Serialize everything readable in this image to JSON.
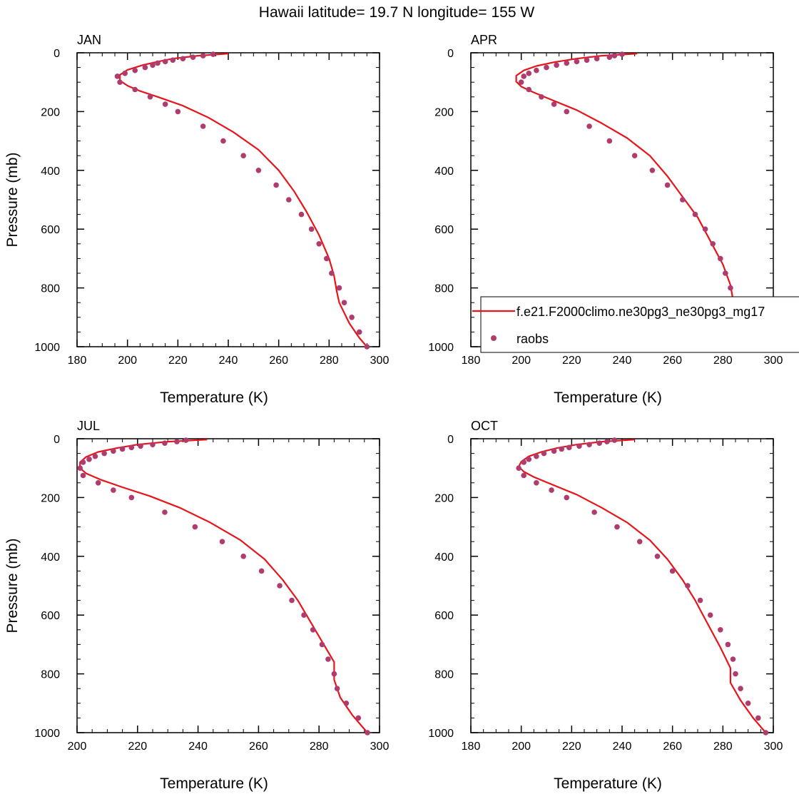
{
  "figure": {
    "title": "Hawaii  latitude= 19.7 N longitude= 155 W"
  },
  "chart_data": [
    {
      "type": "line",
      "title": "JAN",
      "xlabel": "Temperature (K)",
      "ylabel": "Pressure (mb)",
      "xlim": [
        180,
        300
      ],
      "ylim": [
        0,
        1000
      ],
      "y_inverted": true,
      "xticks": [
        180,
        200,
        220,
        240,
        260,
        280,
        300
      ],
      "yticks": [
        0,
        200,
        400,
        600,
        800,
        1000
      ],
      "series": [
        {
          "name": "f.e21.F2000climo.ne30pg3_ne30pg3_mg17",
          "kind": "line",
          "color": "#e8141a",
          "points": [
            [
              240,
              3
            ],
            [
              228,
              10
            ],
            [
              218,
              20
            ],
            [
              212,
              30
            ],
            [
              206,
              42
            ],
            [
              200,
              58
            ],
            [
              197,
              75
            ],
            [
              197,
              95
            ],
            [
              200,
              112
            ],
            [
              205,
              130
            ],
            [
              212,
              150
            ],
            [
              222,
              180
            ],
            [
              232,
              220
            ],
            [
              242,
              270
            ],
            [
              252,
              330
            ],
            [
              260,
              400
            ],
            [
              266,
              470
            ],
            [
              271,
              540
            ],
            [
              276,
              620
            ],
            [
              280,
              700
            ],
            [
              282,
              760
            ],
            [
              283,
              810
            ],
            [
              284,
              850
            ],
            [
              288,
              920
            ],
            [
              292,
              970
            ],
            [
              295,
              1000
            ]
          ]
        },
        {
          "name": "raobs",
          "kind": "scatter",
          "color": "#b03c6e",
          "points": [
            [
              234,
              5
            ],
            [
              230,
              10
            ],
            [
              226,
              15
            ],
            [
              222,
              20
            ],
            [
              218,
              25
            ],
            [
              215,
              30
            ],
            [
              212,
              35
            ],
            [
              210,
              42
            ],
            [
              207,
              50
            ],
            [
              203,
              60
            ],
            [
              199,
              70
            ],
            [
              196,
              80
            ],
            [
              197,
              100
            ],
            [
              203,
              125
            ],
            [
              209,
              150
            ],
            [
              215,
              175
            ],
            [
              220,
              200
            ],
            [
              230,
              250
            ],
            [
              238,
              300
            ],
            [
              246,
              350
            ],
            [
              252,
              400
            ],
            [
              259,
              450
            ],
            [
              264,
              500
            ],
            [
              269,
              550
            ],
            [
              273,
              600
            ],
            [
              276,
              650
            ],
            [
              279,
              700
            ],
            [
              281,
              750
            ],
            [
              284,
              800
            ],
            [
              286,
              850
            ],
            [
              289,
              900
            ],
            [
              292,
              950
            ],
            [
              295,
              1000
            ]
          ]
        }
      ]
    },
    {
      "type": "line",
      "title": "APR",
      "xlabel": "Temperature (K)",
      "ylabel": "",
      "xlim": [
        180,
        300
      ],
      "ylim": [
        0,
        1000
      ],
      "y_inverted": true,
      "xticks": [
        180,
        200,
        220,
        240,
        260,
        280,
        300
      ],
      "yticks": [
        0,
        200,
        400,
        600,
        800,
        1000
      ],
      "legend": {
        "placement": "lower-right",
        "entries": [
          {
            "label": "f.e21.F2000climo.ne30pg3_ne30pg3_mg17",
            "marker": "line",
            "color": "#e8141a"
          },
          {
            "label": "raobs",
            "marker": "dot",
            "color": "#b03c6e"
          }
        ]
      },
      "series": [
        {
          "name": "f.e21.F2000climo.ne30pg3_ne30pg3_mg17",
          "kind": "line",
          "color": "#e8141a",
          "points": [
            [
              246,
              3
            ],
            [
              232,
              10
            ],
            [
              222,
              20
            ],
            [
              213,
              32
            ],
            [
              206,
              45
            ],
            [
              201,
              60
            ],
            [
              198,
              78
            ],
            [
              198,
              98
            ],
            [
              200,
              115
            ],
            [
              205,
              135
            ],
            [
              212,
              160
            ],
            [
              222,
              195
            ],
            [
              232,
              240
            ],
            [
              242,
              290
            ],
            [
              251,
              350
            ],
            [
              258,
              420
            ],
            [
              264,
              490
            ],
            [
              270,
              560
            ],
            [
              275,
              640
            ],
            [
              280,
              720
            ],
            [
              283,
              790
            ],
            [
              284,
              840
            ],
            [
              288,
              900
            ],
            [
              292,
              960
            ],
            [
              295,
              1000
            ]
          ]
        },
        {
          "name": "raobs",
          "kind": "scatter",
          "color": "#b03c6e",
          "points": [
            [
              240,
              5
            ],
            [
              237,
              10
            ],
            [
              235,
              15
            ],
            [
              230,
              20
            ],
            [
              226,
              25
            ],
            [
              222,
              30
            ],
            [
              218,
              35
            ],
            [
              214,
              42
            ],
            [
              210,
              50
            ],
            [
              206,
              60
            ],
            [
              203,
              70
            ],
            [
              201,
              80
            ],
            [
              200,
              100
            ],
            [
              203,
              125
            ],
            [
              208,
              150
            ],
            [
              213,
              175
            ],
            [
              218,
              200
            ],
            [
              227,
              250
            ],
            [
              235,
              300
            ],
            [
              245,
              350
            ],
            [
              252,
              400
            ],
            [
              258,
              450
            ],
            [
              264,
              500
            ],
            [
              269,
              550
            ],
            [
              273,
              600
            ],
            [
              276,
              650
            ],
            [
              279,
              700
            ],
            [
              281,
              750
            ],
            [
              283,
              800
            ],
            [
              285,
              850
            ],
            [
              288,
              900
            ],
            [
              291,
              950
            ],
            [
              295,
              1000
            ]
          ]
        }
      ]
    },
    {
      "type": "line",
      "title": "JUL",
      "xlabel": "Temperature (K)",
      "ylabel": "Pressure (mb)",
      "xlim": [
        200,
        300
      ],
      "ylim": [
        0,
        1000
      ],
      "y_inverted": true,
      "xticks": [
        200,
        220,
        240,
        260,
        280,
        300
      ],
      "yticks": [
        0,
        200,
        400,
        600,
        800,
        1000
      ],
      "series": [
        {
          "name": "f.e21.F2000climo.ne30pg3_ne30pg3_mg17",
          "kind": "line",
          "color": "#e8141a",
          "points": [
            [
              243,
              3
            ],
            [
              230,
              10
            ],
            [
              220,
              20
            ],
            [
              213,
              32
            ],
            [
              207,
              45
            ],
            [
              203,
              62
            ],
            [
              201,
              80
            ],
            [
              201,
              100
            ],
            [
              203,
              118
            ],
            [
              208,
              140
            ],
            [
              215,
              165
            ],
            [
              224,
              195
            ],
            [
              234,
              235
            ],
            [
              244,
              285
            ],
            [
              254,
              345
            ],
            [
              262,
              410
            ],
            [
              268,
              480
            ],
            [
              273,
              550
            ],
            [
              277,
              620
            ],
            [
              281,
              690
            ],
            [
              285,
              760
            ],
            [
              285,
              820
            ],
            [
              287,
              880
            ],
            [
              291,
              940
            ],
            [
              296,
              1000
            ]
          ]
        },
        {
          "name": "raobs",
          "kind": "scatter",
          "color": "#b03c6e",
          "points": [
            [
              236,
              5
            ],
            [
              233,
              10
            ],
            [
              229,
              15
            ],
            [
              225,
              20
            ],
            [
              221,
              25
            ],
            [
              218,
              30
            ],
            [
              215,
              35
            ],
            [
              212,
              42
            ],
            [
              209,
              50
            ],
            [
              206,
              60
            ],
            [
              204,
              70
            ],
            [
              202,
              80
            ],
            [
              201,
              100
            ],
            [
              202,
              125
            ],
            [
              207,
              150
            ],
            [
              212,
              175
            ],
            [
              218,
              200
            ],
            [
              229,
              250
            ],
            [
              239,
              300
            ],
            [
              248,
              350
            ],
            [
              255,
              400
            ],
            [
              261,
              450
            ],
            [
              267,
              500
            ],
            [
              271,
              550
            ],
            [
              275,
              600
            ],
            [
              278,
              650
            ],
            [
              281,
              700
            ],
            [
              283,
              750
            ],
            [
              285,
              800
            ],
            [
              286,
              850
            ],
            [
              289,
              900
            ],
            [
              293,
              950
            ],
            [
              296,
              1000
            ]
          ]
        }
      ]
    },
    {
      "type": "line",
      "title": "OCT",
      "xlabel": "Temperature (K)",
      "ylabel": "",
      "xlim": [
        180,
        300
      ],
      "ylim": [
        0,
        1000
      ],
      "y_inverted": true,
      "xticks": [
        180,
        200,
        220,
        240,
        260,
        280,
        300
      ],
      "yticks": [
        0,
        200,
        400,
        600,
        800,
        1000
      ],
      "series": [
        {
          "name": "f.e21.F2000climo.ne30pg3_ne30pg3_mg17",
          "kind": "line",
          "color": "#e8141a",
          "points": [
            [
              245,
              3
            ],
            [
              232,
              10
            ],
            [
              222,
              20
            ],
            [
              214,
              32
            ],
            [
              208,
              45
            ],
            [
              203,
              60
            ],
            [
              200,
              78
            ],
            [
              199,
              95
            ],
            [
              201,
              112
            ],
            [
              205,
              130
            ],
            [
              212,
              155
            ],
            [
              222,
              190
            ],
            [
              232,
              235
            ],
            [
              242,
              285
            ],
            [
              251,
              345
            ],
            [
              258,
              410
            ],
            [
              264,
              480
            ],
            [
              269,
              550
            ],
            [
              274,
              630
            ],
            [
              279,
              710
            ],
            [
              283,
              780
            ],
            [
              283,
              830
            ],
            [
              287,
              890
            ],
            [
              292,
              950
            ],
            [
              297,
              1000
            ]
          ]
        },
        {
          "name": "raobs",
          "kind": "scatter",
          "color": "#b03c6e",
          "points": [
            [
              237,
              5
            ],
            [
              234,
              10
            ],
            [
              231,
              15
            ],
            [
              227,
              20
            ],
            [
              223,
              25
            ],
            [
              219,
              30
            ],
            [
              216,
              35
            ],
            [
              213,
              42
            ],
            [
              209,
              50
            ],
            [
              206,
              60
            ],
            [
              203,
              70
            ],
            [
              201,
              80
            ],
            [
              199,
              100
            ],
            [
              201,
              125
            ],
            [
              206,
              150
            ],
            [
              212,
              175
            ],
            [
              218,
              200
            ],
            [
              229,
              250
            ],
            [
              238,
              300
            ],
            [
              247,
              350
            ],
            [
              254,
              400
            ],
            [
              260,
              450
            ],
            [
              266,
              500
            ],
            [
              271,
              550
            ],
            [
              275,
              600
            ],
            [
              279,
              650
            ],
            [
              282,
              700
            ],
            [
              284,
              750
            ],
            [
              285,
              800
            ],
            [
              287,
              850
            ],
            [
              290,
              900
            ],
            [
              294,
              950
            ],
            [
              297,
              1000
            ]
          ]
        }
      ]
    }
  ]
}
